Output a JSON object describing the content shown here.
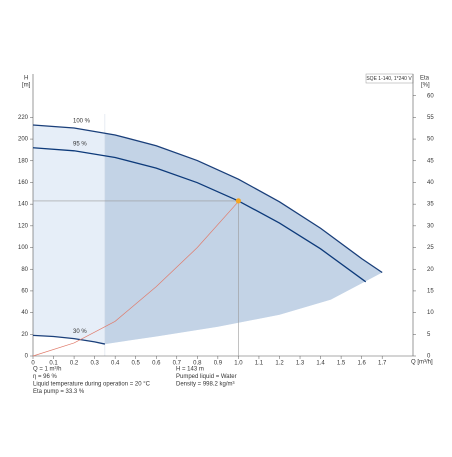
{
  "chart_data": {
    "type": "pump_curve",
    "y_label": "H",
    "y_unit": "[m]",
    "y2_label": "Eta",
    "y2_unit": "[%]",
    "x_label": "Q [m³/h]",
    "pump_label": "SQE 1-140, 1*240 V",
    "xlim": [
      0,
      1.85
    ],
    "xticks": [
      0,
      0.1,
      0.2,
      0.3,
      0.4,
      0.5,
      0.6,
      0.7,
      0.8,
      0.9,
      {
        "value": 1,
        "label": "1.0"
      },
      1.1,
      1.2,
      1.3,
      1.4,
      1.5,
      1.6,
      1.7
    ],
    "ylim": [
      0,
      260
    ],
    "yticks": [
      0,
      20,
      40,
      60,
      80,
      100,
      120,
      140,
      160,
      180,
      200,
      220
    ],
    "y2lim": [
      0,
      65
    ],
    "y2ticks": [
      0,
      5,
      10,
      15,
      20,
      25,
      30,
      35,
      40,
      45,
      50,
      55,
      60
    ],
    "series": [
      {
        "name": "100 %",
        "color": "#1a3f7a",
        "x": [
          0,
          0.2,
          0.4,
          0.6,
          0.8,
          1.0,
          1.2,
          1.4,
          1.6,
          1.7
        ],
        "values": [
          213,
          210.2,
          203.8,
          193.8,
          180.2,
          163,
          142.2,
          117.8,
          89.8,
          77
        ]
      },
      {
        "name": "95 %",
        "color": "#0d3a7a",
        "x": [
          0,
          0.2,
          0.4,
          0.6,
          0.8,
          1.0,
          1.2,
          1.4,
          1.62
        ],
        "values": [
          192,
          189.2,
          183,
          173.2,
          159.8,
          143,
          122.6,
          98.8,
          68.4
        ]
      },
      {
        "name": "30 %",
        "color": "#1a3f7a",
        "x": [
          0,
          0.1,
          0.2,
          0.3,
          0.35
        ],
        "values": [
          19,
          18,
          16,
          13,
          11
        ]
      },
      {
        "color": "#e07b6b",
        "axis": "y2",
        "x": [
          0,
          0.2,
          0.4,
          0.6,
          0.8,
          1.0
        ],
        "values": [
          0,
          3,
          8,
          16,
          25,
          35.6
        ]
      }
    ],
    "region_lower": {
      "x": [
        0,
        0.1,
        0.2,
        0.3,
        0.35,
        0.6,
        0.9,
        1.2,
        1.45,
        1.7
      ],
      "values": [
        19,
        18,
        16,
        13,
        11,
        18,
        27,
        38,
        52,
        77
      ]
    },
    "operating_range_qmin": 0.35,
    "duty_point": {
      "q": 1,
      "h": 143,
      "color": "#f5a623"
    },
    "info_left": [
      "Q = 1 m³/h",
      "η = 96 %",
      "Liquid temperature during operation = 20 °C",
      "Eta pump = 33.3 %"
    ],
    "info_right": [
      "H = 143 m",
      "Pumped liquid = Water",
      "Density = 998.2 kg/m³"
    ]
  }
}
